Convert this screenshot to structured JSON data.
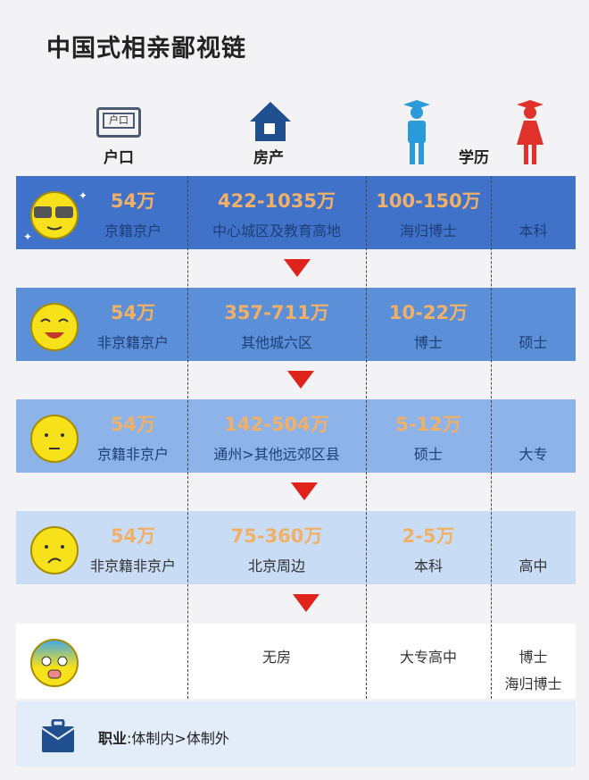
{
  "title": "中国式相亲鄙视链",
  "headers": {
    "hukou_icon_text": "户口",
    "hukou": "户口",
    "property": "房产",
    "education": "学历"
  },
  "rows": [
    {
      "mood": "cool",
      "hukou_value": "54万",
      "hukou": "京籍京户",
      "property_value": "422-1035万",
      "property": "中心城区及教育高地",
      "edu_value": "100-150万",
      "edu_male": "海归博士",
      "edu_female": "本科",
      "bg": "#3f72c8"
    },
    {
      "mood": "happy",
      "hukou_value": "54万",
      "hukou": "非京籍京户",
      "property_value": "357-711万",
      "property": "其他城六区",
      "edu_value": "10-22万",
      "edu_male": "博士",
      "edu_female": "硕士",
      "bg": "#5b8fd8"
    },
    {
      "mood": "neutral",
      "hukou_value": "54万",
      "hukou": "京籍非京户",
      "property_value": "142-504万",
      "property": "通州>其他远郊区县",
      "edu_value": "5-12万",
      "edu_male": "硕士",
      "edu_female": "大专",
      "bg": "#8db3e8"
    },
    {
      "mood": "sad",
      "hukou_value": "54万",
      "hukou": "非京籍非京户",
      "property_value": "75-360万",
      "property": "北京周边",
      "edu_value": "2-5万",
      "edu_male": "本科",
      "edu_female": "高中",
      "bg": "#c9dcf6"
    },
    {
      "mood": "scared",
      "property": "无房",
      "edu_male": "大专高中",
      "edu_female": "博士",
      "edu_female2": "海归博士",
      "bg": "#ffffff"
    }
  ],
  "footer": {
    "label": "职业",
    "colon": ":",
    "text": "体制内>体制外"
  },
  "colors": {
    "arrow": "#e0231a",
    "number": "#f0b068",
    "icon_blue": "#1f4f8f",
    "male": "#2a9ad8",
    "female": "#e0322a"
  }
}
